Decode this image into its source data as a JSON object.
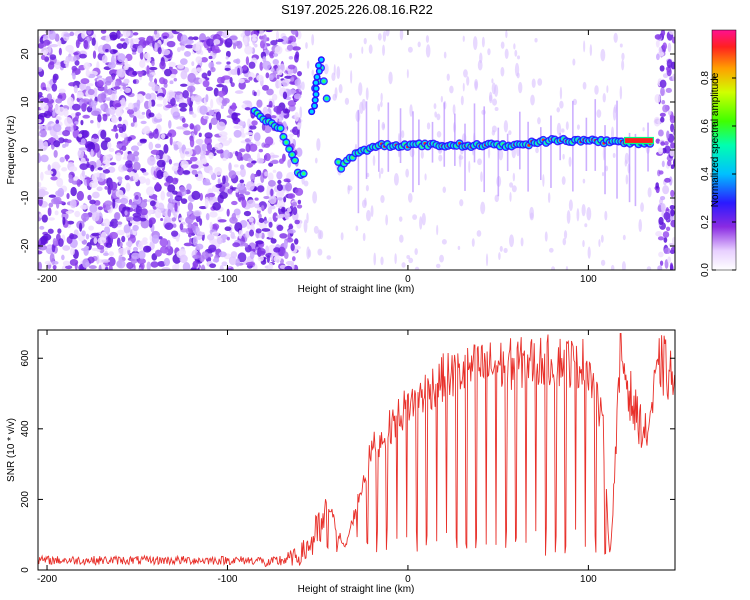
{
  "title": "S197.2025.226.08.16.R22",
  "chart_data": [
    {
      "type": "heatmap",
      "name": "spectrogram",
      "xlabel": "Height of straight line (km)",
      "ylabel": "Frequency (Hz)",
      "xlim": [
        -205,
        148
      ],
      "ylim": [
        -25,
        25
      ],
      "xticks": [
        -200,
        -100,
        0,
        100
      ],
      "yticks": [
        -20,
        -10,
        0,
        10,
        20
      ],
      "xtick_labels": [
        "-200",
        "-100",
        "0",
        "100"
      ],
      "ytick_labels": [
        "-20",
        "-10",
        "0",
        "10",
        "20"
      ],
      "colorbar": {
        "label": "Normalized spectral amplitude",
        "range": [
          0,
          1
        ],
        "ticks": [
          0.0,
          0.2,
          0.4,
          0.6,
          0.8
        ],
        "tick_labels": [
          "0.0",
          "0.2",
          "0.4",
          "0.6",
          "0.8"
        ]
      },
      "signal_track": [
        {
          "x": -85,
          "y": 8
        },
        {
          "x": -70,
          "y": 4
        },
        {
          "x": -62,
          "y": -3
        },
        {
          "x": -58,
          "y": -6
        },
        {
          "x": -52,
          "y": 12
        },
        {
          "x": -48,
          "y": 17
        },
        {
          "x": -38,
          "y": -4
        },
        {
          "x": -30,
          "y": -1
        },
        {
          "x": -15,
          "y": 1
        },
        {
          "x": 0,
          "y": 1
        },
        {
          "x": 20,
          "y": 1
        },
        {
          "x": 40,
          "y": 1
        },
        {
          "x": 60,
          "y": 1
        },
        {
          "x": 80,
          "y": 2
        },
        {
          "x": 100,
          "y": 2
        },
        {
          "x": 120,
          "y": 1.5
        },
        {
          "x": 135,
          "y": 1.5
        }
      ]
    },
    {
      "type": "line",
      "name": "snr",
      "xlabel": "Height of straight line (km)",
      "ylabel": "SNR (10 * v/v)",
      "xlim": [
        -205,
        148
      ],
      "ylim": [
        0,
        680
      ],
      "xticks": [
        -200,
        -100,
        0,
        100
      ],
      "yticks": [
        0,
        200,
        400,
        600
      ],
      "xtick_labels": [
        "-200",
        "-100",
        "0",
        "100"
      ],
      "ytick_labels": [
        "0",
        "200",
        "400",
        "600"
      ],
      "series": [
        {
          "name": "SNR",
          "color": "#e8302a",
          "envelope": [
            {
              "x": -205,
              "y": 20
            },
            {
              "x": -80,
              "y": 25
            },
            {
              "x": -60,
              "y": 60
            },
            {
              "x": -45,
              "y": 200
            },
            {
              "x": -35,
              "y": 60
            },
            {
              "x": -20,
              "y": 350
            },
            {
              "x": 0,
              "y": 480
            },
            {
              "x": 20,
              "y": 560
            },
            {
              "x": 40,
              "y": 590
            },
            {
              "x": 60,
              "y": 600
            },
            {
              "x": 80,
              "y": 610
            },
            {
              "x": 100,
              "y": 600
            },
            {
              "x": 108,
              "y": 420
            },
            {
              "x": 112,
              "y": 30
            },
            {
              "x": 118,
              "y": 650
            },
            {
              "x": 125,
              "y": 480
            },
            {
              "x": 132,
              "y": 400
            },
            {
              "x": 140,
              "y": 620
            },
            {
              "x": 148,
              "y": 560
            }
          ]
        }
      ]
    }
  ],
  "colors": {
    "line": "#e8302a",
    "axis": "#000000",
    "background": "#ffffff"
  }
}
